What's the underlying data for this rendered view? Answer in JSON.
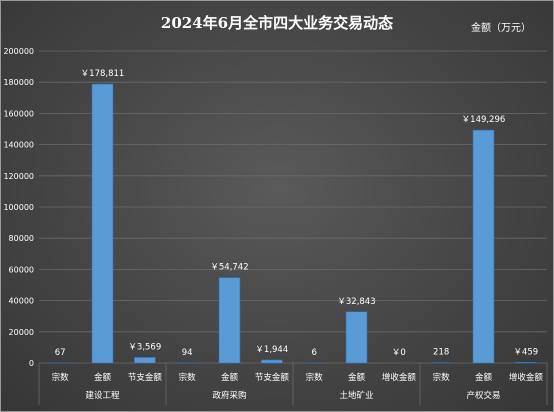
{
  "chart_data": {
    "type": "bar",
    "title": "2024年6月全市四大业务交易动态",
    "unit_label": "金额（万元）",
    "ylim": [
      0,
      200000
    ],
    "yticks": [
      0,
      20000,
      40000,
      60000,
      80000,
      100000,
      120000,
      140000,
      160000,
      180000,
      200000
    ],
    "grid": true,
    "groups": [
      {
        "name": "建设工程",
        "bars": [
          {
            "category": "宗数",
            "value": 67,
            "label": "67"
          },
          {
            "category": "金额",
            "value": 178811,
            "label": "￥178,811"
          },
          {
            "category": "节支金额",
            "value": 3569,
            "label": "￥3,569"
          }
        ]
      },
      {
        "name": "政府采购",
        "bars": [
          {
            "category": "宗数",
            "value": 94,
            "label": "94"
          },
          {
            "category": "金额",
            "value": 54742,
            "label": "￥54,742"
          },
          {
            "category": "节支金额",
            "value": 1944,
            "label": "￥1,944"
          }
        ]
      },
      {
        "name": "土地矿业",
        "bars": [
          {
            "category": "宗数",
            "value": 6,
            "label": "6"
          },
          {
            "category": "金额",
            "value": 32843,
            "label": "￥32,843"
          },
          {
            "category": "增收金额",
            "value": 0,
            "label": "￥0"
          }
        ]
      },
      {
        "name": "产权交易",
        "bars": [
          {
            "category": "宗数",
            "value": 218,
            "label": "218"
          },
          {
            "category": "金额",
            "value": 149296,
            "label": "￥149,296"
          },
          {
            "category": "增收金额",
            "value": 459,
            "label": "￥459"
          }
        ]
      }
    ],
    "colors": {
      "bar": "#5b9bd5",
      "bar_edge": "#2f6eb5",
      "grid": "#6a6a6a",
      "text": "#ffffff"
    }
  }
}
